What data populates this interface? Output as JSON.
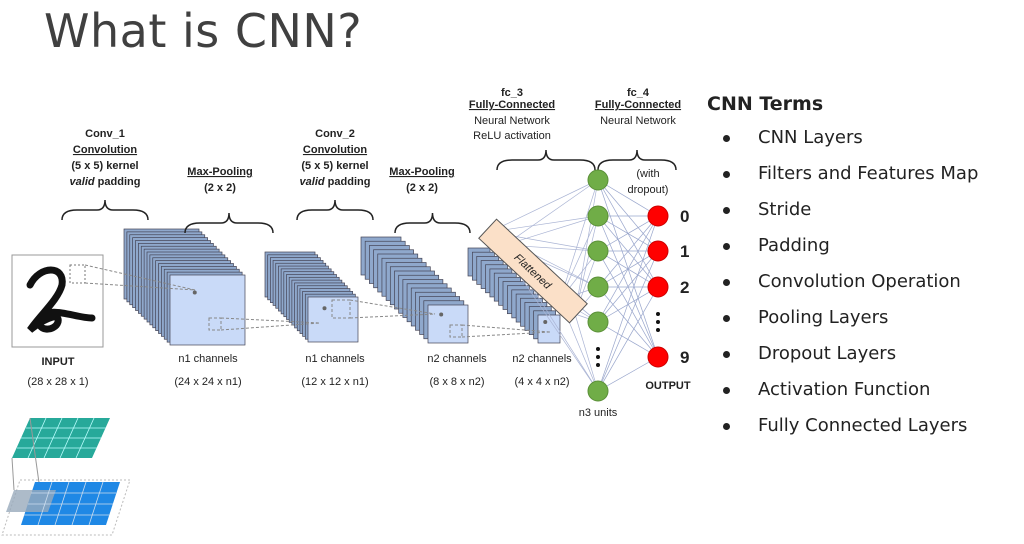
{
  "slide": {
    "title": "What is CNN?"
  },
  "diagram": {
    "input": {
      "label": "INPUT",
      "dims": "(28 x 28 x 1)"
    },
    "conv1": {
      "name": "Conv_1",
      "type": "Convolution",
      "kernel": "(5 x 5) kernel",
      "padding_em": "valid",
      "padding": " padding",
      "channels": "n1 channels",
      "dims": "(24 x 24 x n1)"
    },
    "pool1": {
      "type": "Max-Pooling",
      "size": "(2 x 2)",
      "channels": "n1 channels",
      "dims": "(12 x 12 x n1)"
    },
    "conv2": {
      "name": "Conv_2",
      "type": "Convolution",
      "kernel": "(5 x 5) kernel",
      "padding_em": "valid",
      "padding": " padding",
      "channels": "n2 channels",
      "dims": "(8 x 8 x n2)"
    },
    "pool2": {
      "type": "Max-Pooling",
      "size": "(2 x 2)",
      "channels": "n2 channels",
      "dims": "(4 x 4 x n2)"
    },
    "flattened": "Flattened",
    "fc3": {
      "name": "fc_3",
      "type": "Fully-Connected",
      "line1": "Neural Network",
      "line2": "ReLU activation",
      "units": "n3 units"
    },
    "fc4": {
      "name": "fc_4",
      "type": "Fully-Connected",
      "line1": "Neural Network",
      "dropout1": "(with",
      "dropout2": "dropout)"
    },
    "outputs": [
      "0",
      "1",
      "2",
      "9"
    ],
    "output_label": "OUTPUT",
    "colors": {
      "hidden_node": "#70ad47",
      "output_node": "#ff0000",
      "feature_map": "#c9daf8",
      "flattened": "#fbe0c8"
    }
  },
  "terms": {
    "heading": "CNN Terms",
    "items": [
      "CNN Layers",
      "Filters and Features Map",
      "Stride",
      "Padding",
      "Convolution Operation",
      "Pooling Layers",
      "Dropout Layers",
      "Activation Function",
      "Fully Connected Layers"
    ]
  }
}
